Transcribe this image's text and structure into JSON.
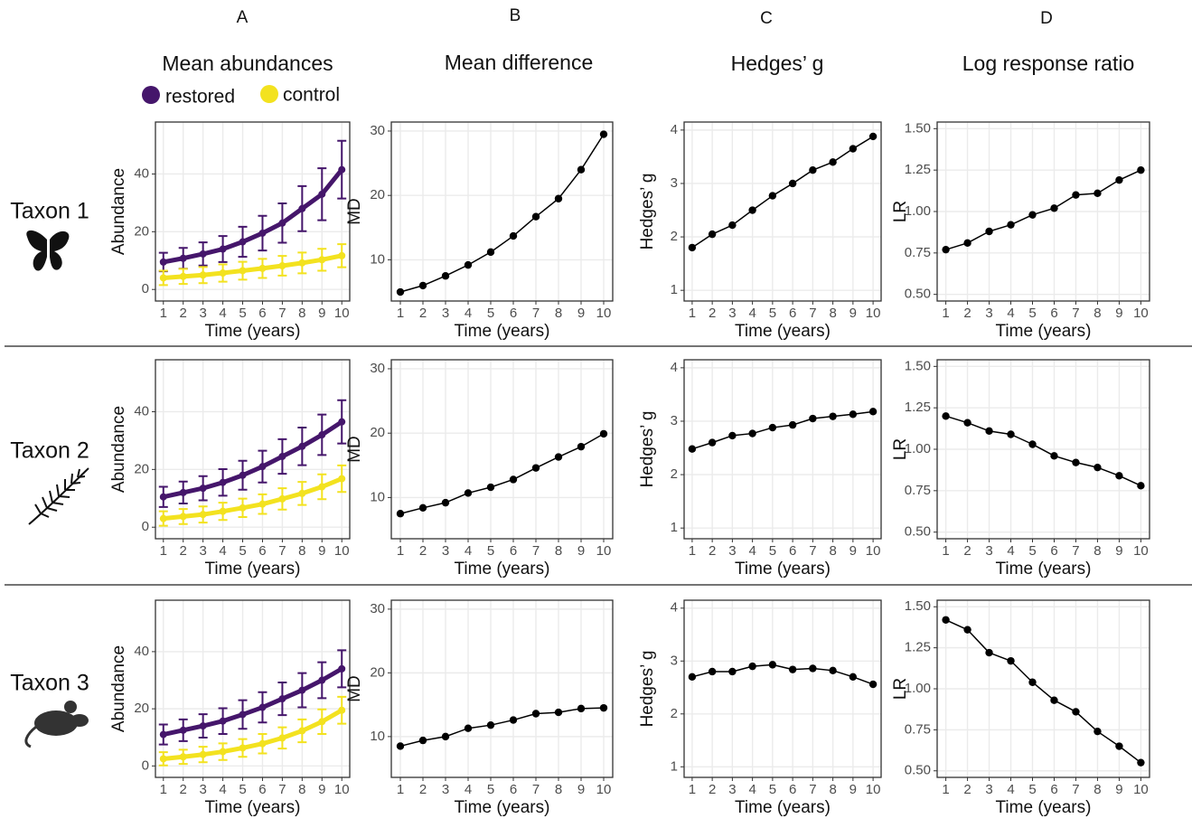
{
  "columns": [
    {
      "letter": "A",
      "title": "Mean abundances"
    },
    {
      "letter": "B",
      "title": "Mean difference"
    },
    {
      "letter": "C",
      "title": "Hedges’ g"
    },
    {
      "letter": "D",
      "title": "Log response ratio"
    }
  ],
  "rows": [
    "Taxon 1",
    "Taxon 2",
    "Taxon 3"
  ],
  "chart_data": [
    {
      "type": "line",
      "x": [
        1,
        2,
        3,
        4,
        5,
        6,
        7,
        8,
        9,
        10
      ],
      "xlabel": "Time (years)",
      "ylabel": "Abundance",
      "xlim": [
        0.6,
        10.4
      ],
      "ylim": [
        -4,
        58
      ],
      "xticks": [
        1,
        2,
        3,
        4,
        5,
        6,
        7,
        8,
        9,
        10
      ],
      "yticks": [
        0,
        20,
        40
      ],
      "grid": true,
      "series": [
        {
          "name": "restored",
          "color": "#45166b",
          "values": [
            9.5,
            10.8,
            12.3,
            14,
            16.5,
            19.5,
            23,
            28,
            33,
            41.5
          ],
          "errors": [
            3.2,
            3.6,
            4,
            4.5,
            5.2,
            6,
            6.8,
            7.8,
            9,
            10
          ]
        },
        {
          "name": "control",
          "color": "#f3e21f",
          "values": [
            4,
            4.5,
            5,
            5.7,
            6.5,
            7.3,
            8.2,
            9.2,
            10.3,
            11.7
          ],
          "errors": [
            2.5,
            2.6,
            2.8,
            3,
            3.1,
            3.3,
            3.4,
            3.6,
            3.8,
            4
          ]
        }
      ]
    },
    {
      "type": "line",
      "x": [
        1,
        2,
        3,
        4,
        5,
        6,
        7,
        8,
        9,
        10
      ],
      "xlabel": "Time (years)",
      "ylabel": "MD",
      "xlim": [
        0.6,
        10.4
      ],
      "ylim": [
        3.6,
        31.4
      ],
      "xticks": [
        1,
        2,
        3,
        4,
        5,
        6,
        7,
        8,
        9,
        10
      ],
      "yticks": [
        10,
        20,
        30
      ],
      "grid": true,
      "color": "#000000",
      "values": [
        5,
        6,
        7.5,
        9.2,
        11.2,
        13.7,
        16.7,
        19.5,
        24,
        29.5
      ]
    },
    {
      "type": "line",
      "x": [
        1,
        2,
        3,
        4,
        5,
        6,
        7,
        8,
        9,
        10
      ],
      "xlabel": "Time (years)",
      "ylabel": "Hedges’ g",
      "xlim": [
        0.6,
        10.4
      ],
      "ylim": [
        0.8,
        4.15
      ],
      "xticks": [
        1,
        2,
        3,
        4,
        5,
        6,
        7,
        8,
        9,
        10
      ],
      "yticks": [
        1,
        2,
        3,
        4
      ],
      "grid": true,
      "color": "#000000",
      "values": [
        1.8,
        2.05,
        2.22,
        2.5,
        2.77,
        3,
        3.25,
        3.4,
        3.65,
        3.88
      ]
    },
    {
      "type": "line",
      "x": [
        1,
        2,
        3,
        4,
        5,
        6,
        7,
        8,
        9,
        10
      ],
      "xlabel": "Time (years)",
      "ylabel": "LR",
      "xlim": [
        0.6,
        10.4
      ],
      "ylim": [
        0.46,
        1.54
      ],
      "xticks": [
        1,
        2,
        3,
        4,
        5,
        6,
        7,
        8,
        9,
        10
      ],
      "yticks": [
        {
          "value": 0.5,
          "label": "0.50"
        },
        0.75,
        {
          "value": 1,
          "label": "1.00"
        },
        1.25,
        {
          "value": 1.5,
          "label": "1.50"
        }
      ],
      "grid": true,
      "color": "#000000",
      "values": [
        0.77,
        0.81,
        0.88,
        0.92,
        0.98,
        1.02,
        1.1,
        1.11,
        1.19,
        1.25
      ]
    },
    {
      "type": "line",
      "x": [
        1,
        2,
        3,
        4,
        5,
        6,
        7,
        8,
        9,
        10
      ],
      "xlabel": "Time (years)",
      "ylabel": "Abundance",
      "xlim": [
        0.6,
        10.4
      ],
      "ylim": [
        -4,
        58
      ],
      "xticks": [
        1,
        2,
        3,
        4,
        5,
        6,
        7,
        8,
        9,
        10
      ],
      "yticks": [
        0,
        20,
        40
      ],
      "grid": true,
      "series": [
        {
          "name": "restored",
          "color": "#45166b",
          "values": [
            10.5,
            12,
            13.5,
            15.5,
            18,
            21,
            24.5,
            28,
            32,
            36.5
          ],
          "errors": [
            3.5,
            3.8,
            4.2,
            4.6,
            5,
            5.5,
            6,
            6.5,
            7,
            7.5
          ]
        },
        {
          "name": "control",
          "color": "#f3e21f",
          "values": [
            3,
            3.7,
            4.4,
            5.5,
            6.7,
            8,
            9.8,
            11.7,
            14,
            16.8
          ],
          "errors": [
            2.5,
            2.6,
            2.8,
            3,
            3.2,
            3.4,
            3.7,
            4,
            4.3,
            4.6
          ]
        }
      ]
    },
    {
      "type": "line",
      "x": [
        1,
        2,
        3,
        4,
        5,
        6,
        7,
        8,
        9,
        10
      ],
      "xlabel": "Time (years)",
      "ylabel": "MD",
      "xlim": [
        0.6,
        10.4
      ],
      "ylim": [
        3.6,
        31.4
      ],
      "xticks": [
        1,
        2,
        3,
        4,
        5,
        6,
        7,
        8,
        9,
        10
      ],
      "yticks": [
        10,
        20,
        30
      ],
      "grid": true,
      "color": "#000000",
      "values": [
        7.5,
        8.4,
        9.2,
        10.7,
        11.6,
        12.8,
        14.6,
        16.3,
        17.9,
        19.9
      ]
    },
    {
      "type": "line",
      "x": [
        1,
        2,
        3,
        4,
        5,
        6,
        7,
        8,
        9,
        10
      ],
      "xlabel": "Time (years)",
      "ylabel": "Hedges’ g",
      "xlim": [
        0.6,
        10.4
      ],
      "ylim": [
        0.8,
        4.15
      ],
      "xticks": [
        1,
        2,
        3,
        4,
        5,
        6,
        7,
        8,
        9,
        10
      ],
      "yticks": [
        1,
        2,
        3,
        4
      ],
      "grid": true,
      "color": "#000000",
      "values": [
        2.48,
        2.6,
        2.73,
        2.77,
        2.88,
        2.93,
        3.05,
        3.09,
        3.13,
        3.18
      ]
    },
    {
      "type": "line",
      "x": [
        1,
        2,
        3,
        4,
        5,
        6,
        7,
        8,
        9,
        10
      ],
      "xlabel": "Time (years)",
      "ylabel": "LR",
      "xlim": [
        0.6,
        10.4
      ],
      "ylim": [
        0.46,
        1.54
      ],
      "xticks": [
        1,
        2,
        3,
        4,
        5,
        6,
        7,
        8,
        9,
        10
      ],
      "yticks": [
        {
          "value": 0.5,
          "label": "0.50"
        },
        0.75,
        {
          "value": 1,
          "label": "1.00"
        },
        1.25,
        {
          "value": 1.5,
          "label": "1.50"
        }
      ],
      "grid": true,
      "color": "#000000",
      "values": [
        1.2,
        1.16,
        1.11,
        1.09,
        1.03,
        0.96,
        0.92,
        0.89,
        0.84,
        0.78
      ]
    },
    {
      "type": "line",
      "x": [
        1,
        2,
        3,
        4,
        5,
        6,
        7,
        8,
        9,
        10
      ],
      "xlabel": "Time (years)",
      "ylabel": "Abundance",
      "xlim": [
        0.6,
        10.4
      ],
      "ylim": [
        -4,
        58
      ],
      "xticks": [
        1,
        2,
        3,
        4,
        5,
        6,
        7,
        8,
        9,
        10
      ],
      "yticks": [
        0,
        20,
        40
      ],
      "grid": true,
      "series": [
        {
          "name": "restored",
          "color": "#45166b",
          "values": [
            11,
            12.5,
            14,
            15.7,
            18,
            20.5,
            23.5,
            26.5,
            30,
            34
          ],
          "errors": [
            3.5,
            3.8,
            4.1,
            4.5,
            5,
            5.3,
            5.7,
            6,
            6.3,
            6.5
          ]
        },
        {
          "name": "control",
          "color": "#f3e21f",
          "values": [
            2.5,
            3.2,
            4,
            5,
            6.3,
            7.8,
            9.8,
            12.3,
            15.5,
            19.5
          ],
          "errors": [
            2.3,
            2.5,
            2.7,
            2.9,
            3.1,
            3.4,
            3.7,
            4,
            4.3,
            4.7
          ]
        }
      ]
    },
    {
      "type": "line",
      "x": [
        1,
        2,
        3,
        4,
        5,
        6,
        7,
        8,
        9,
        10
      ],
      "xlabel": "Time (years)",
      "ylabel": "MD",
      "xlim": [
        0.6,
        10.4
      ],
      "ylim": [
        3.6,
        31.4
      ],
      "xticks": [
        1,
        2,
        3,
        4,
        5,
        6,
        7,
        8,
        9,
        10
      ],
      "yticks": [
        10,
        20,
        30
      ],
      "grid": true,
      "color": "#000000",
      "values": [
        8.5,
        9.4,
        10,
        11.3,
        11.8,
        12.6,
        13.6,
        13.8,
        14.4,
        14.5
      ]
    },
    {
      "type": "line",
      "x": [
        1,
        2,
        3,
        4,
        5,
        6,
        7,
        8,
        9,
        10
      ],
      "xlabel": "Time (years)",
      "ylabel": "Hedges’ g",
      "xlim": [
        0.6,
        10.4
      ],
      "ylim": [
        0.8,
        4.15
      ],
      "xticks": [
        1,
        2,
        3,
        4,
        5,
        6,
        7,
        8,
        9,
        10
      ],
      "yticks": [
        1,
        2,
        3,
        4
      ],
      "grid": true,
      "color": "#000000",
      "values": [
        2.7,
        2.8,
        2.8,
        2.9,
        2.93,
        2.84,
        2.86,
        2.82,
        2.7,
        2.56
      ]
    },
    {
      "type": "line",
      "x": [
        1,
        2,
        3,
        4,
        5,
        6,
        7,
        8,
        9,
        10
      ],
      "xlabel": "Time (years)",
      "ylabel": "LR",
      "xlim": [
        0.6,
        10.4
      ],
      "ylim": [
        0.46,
        1.54
      ],
      "xticks": [
        1,
        2,
        3,
        4,
        5,
        6,
        7,
        8,
        9,
        10
      ],
      "yticks": [
        {
          "value": 0.5,
          "label": "0.50"
        },
        0.75,
        {
          "value": 1,
          "label": "1.00"
        },
        1.25,
        {
          "value": 1.5,
          "label": "1.50"
        }
      ],
      "grid": true,
      "color": "#000000",
      "values": [
        1.42,
        1.36,
        1.22,
        1.17,
        1.04,
        0.93,
        0.86,
        0.74,
        0.65,
        0.55
      ]
    }
  ]
}
